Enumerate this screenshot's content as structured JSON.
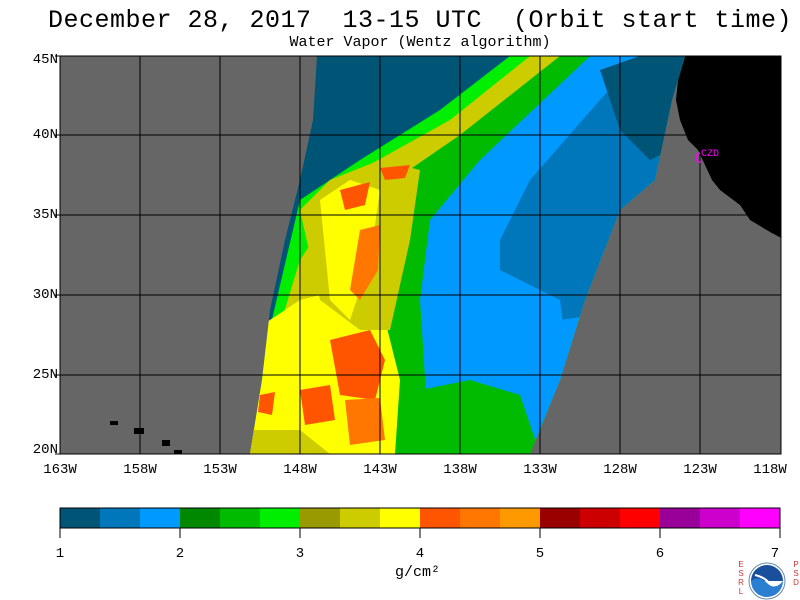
{
  "title": "December 28, 2017  13-15 UTC  (Orbit start time)",
  "subtitle": "Water Vapor (Wentz algorithm)",
  "map": {
    "lat_labels": [
      "45N",
      "40N",
      "35N",
      "30N",
      "25N",
      "20N"
    ],
    "lon_labels": [
      "163W",
      "158W",
      "153W",
      "148W",
      "143W",
      "138W",
      "133W",
      "128W",
      "123W",
      "118W"
    ],
    "station_label": "CZD",
    "colors": {
      "no_data": "#666666",
      "land": "#000000",
      "grid": "#000000",
      "station": "#ff00ff"
    }
  },
  "colorbar": {
    "tick_labels": [
      "1",
      "2",
      "3",
      "4",
      "5",
      "6",
      "7"
    ],
    "units": "g/cm²",
    "colors": [
      "#005577",
      "#0077bb",
      "#0099ff",
      "#008800",
      "#00bb00",
      "#00ee00",
      "#999900",
      "#cccc00",
      "#ffff00",
      "#ff5500",
      "#ff7700",
      "#ff9900",
      "#990000",
      "#cc0000",
      "#ff0000",
      "#990099",
      "#cc00cc",
      "#ff00ff"
    ]
  },
  "logo": {
    "left_letters": "ESRL",
    "right_letters": "PSD"
  }
}
